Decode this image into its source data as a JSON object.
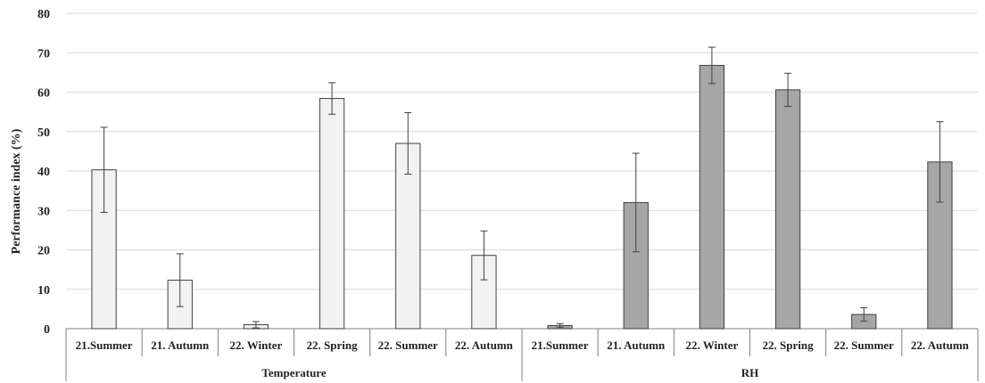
{
  "chart_data": {
    "type": "bar",
    "ylabel": "Performance index (%)",
    "ylim": [
      0,
      80
    ],
    "yticks": [
      0,
      10,
      20,
      30,
      40,
      50,
      60,
      70,
      80
    ],
    "grid": true,
    "groups": [
      {
        "name": "Temperature",
        "color": "#f2f2f2",
        "categories": [
          "21.Summer",
          "21. Autumn",
          "22. Winter",
          "22. Spring",
          "22. Summer",
          "22. Autumn"
        ],
        "values": [
          40.3,
          12.3,
          1.0,
          58.4,
          47.0,
          18.6
        ],
        "errors": [
          10.8,
          6.7,
          0.8,
          4.0,
          7.8,
          6.2
        ]
      },
      {
        "name": "RH",
        "color": "#a6a6a6",
        "categories": [
          "21.Summer",
          "21. Autumn",
          "22. Winter",
          "22. Spring",
          "22. Summer",
          "22. Autumn"
        ],
        "values": [
          0.8,
          32.0,
          66.8,
          60.6,
          3.6,
          42.3
        ],
        "errors": [
          0.5,
          12.5,
          4.6,
          4.2,
          1.7,
          10.2
        ]
      }
    ]
  }
}
